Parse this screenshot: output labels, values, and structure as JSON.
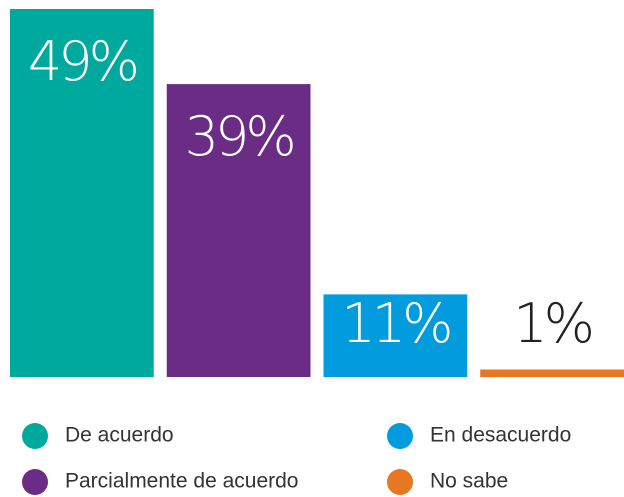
{
  "chart_data": {
    "type": "bar",
    "categories": [
      "De acuerdo",
      "Parcialmente de acuerdo",
      "En desacuerdo",
      "No sabe"
    ],
    "values": [
      49,
      39,
      11,
      1
    ],
    "value_labels": [
      "49%",
      "39%",
      "11%",
      "1%"
    ],
    "colors": [
      "#00a99d",
      "#6b2c86",
      "#009cde",
      "#e87722"
    ],
    "legend": "bottom"
  }
}
